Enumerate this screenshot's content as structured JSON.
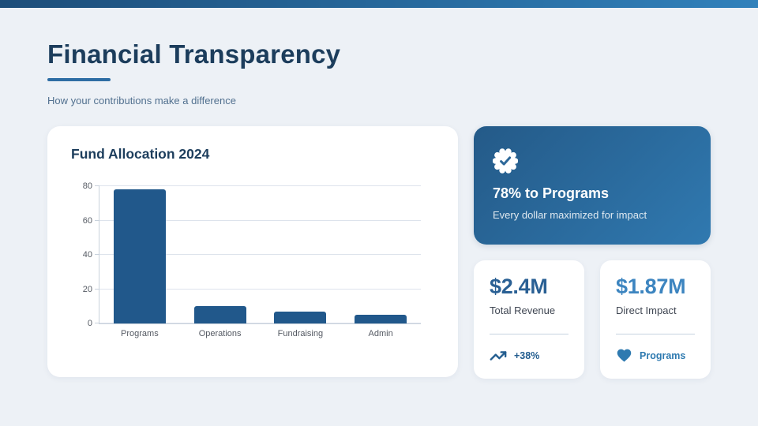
{
  "theme": {
    "page-bg": "#edf1f6",
    "topbar-from": "#1d4e7a",
    "topbar-to": "#3181bb",
    "navy": "#1c3d5c",
    "accent": "#2e6da4",
    "subtitle-color": "#51708f",
    "bar-color": "#21588b",
    "grid-color": "#dde3ec",
    "axis-color": "#c9d2dc",
    "tick-color": "#555a63",
    "bluecard-from": "#245a88",
    "bluecard-to": "#3079b0",
    "stat1-color": "#2a6094",
    "stat2-color": "#3d85c0",
    "label-color": "#3f4652",
    "divider-color": "#c5d2e0",
    "trend-color": "#235d8f",
    "heart-color": "#2e7ab0"
  },
  "header": {
    "title": "Financial Transparency",
    "subtitle": "How your contributions make a difference"
  },
  "chart_data": {
    "type": "bar",
    "title": "Fund Allocation 2024",
    "categories": [
      "Programs",
      "Operations",
      "Fundraising",
      "Admin"
    ],
    "values": [
      78,
      10,
      7,
      5
    ],
    "unit": "percent",
    "ylim": [
      0,
      80
    ],
    "yticks": [
      0,
      20,
      40,
      60,
      80
    ],
    "grid": true,
    "legend": false,
    "xlabel": "",
    "ylabel": ""
  },
  "highlight_card": {
    "badge_icon": "verified-check-badge",
    "title": "78% to Programs",
    "subtitle": "Every dollar maximized for impact"
  },
  "stat_cards": [
    {
      "value": "$2.4M",
      "label": "Total Revenue",
      "footer_icon": "trend-up-icon",
      "footer_text": "+38%"
    },
    {
      "value": "$1.87M",
      "label": "Direct Impact",
      "footer_icon": "heart-icon",
      "footer_text": "Programs"
    }
  ]
}
